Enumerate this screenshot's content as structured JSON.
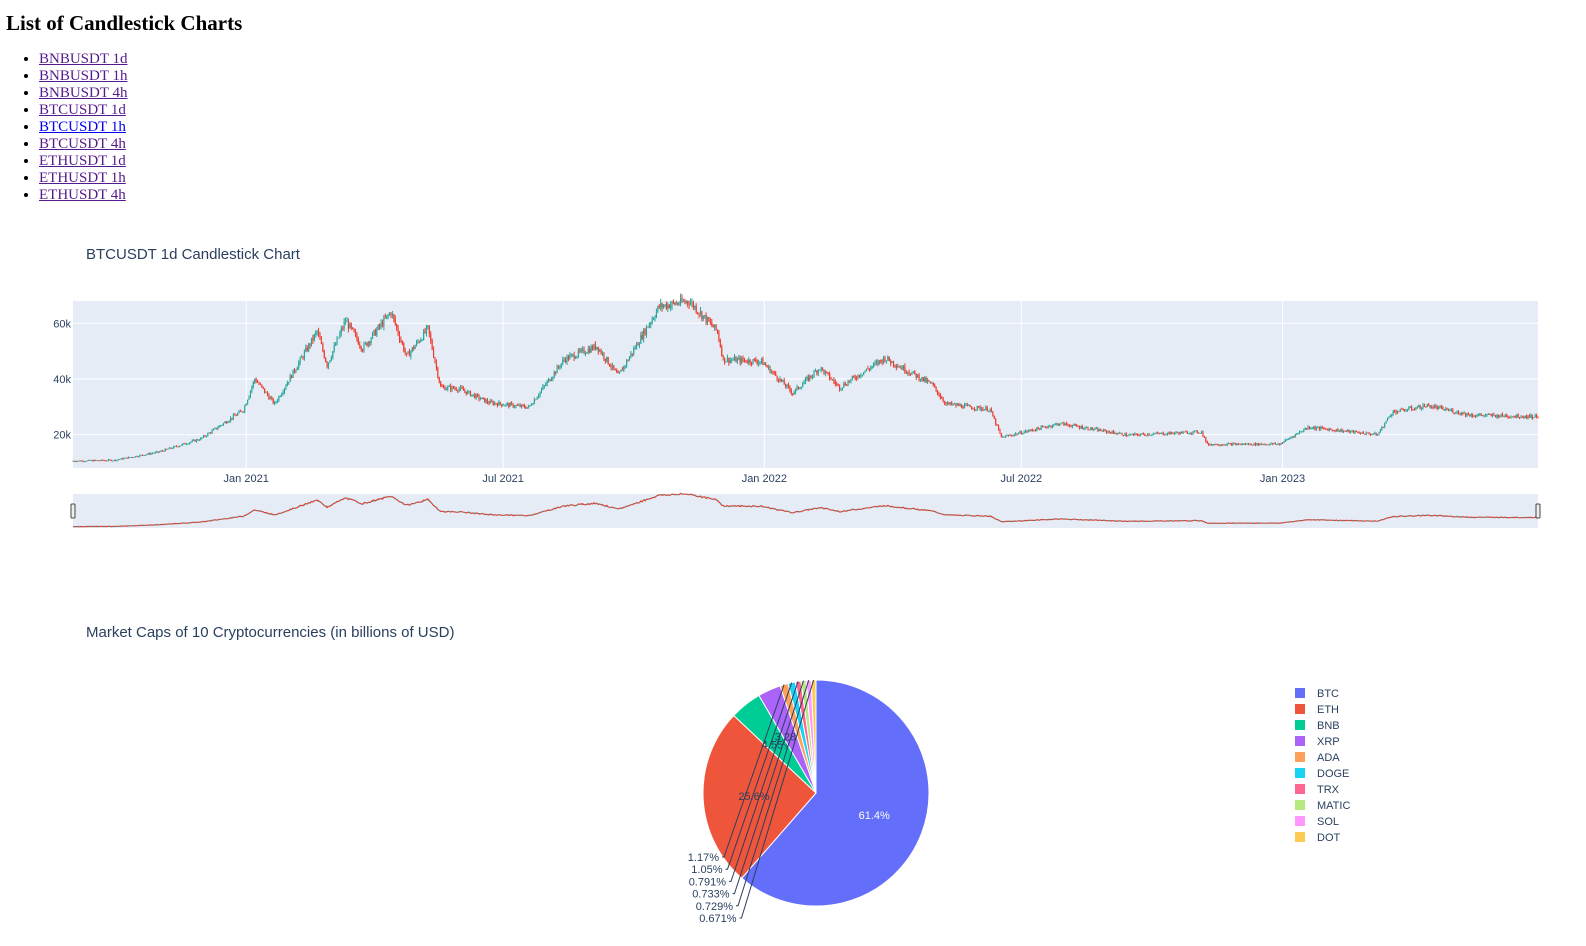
{
  "page": {
    "heading": "List of Candlestick Charts",
    "links": [
      {
        "label": "BNBUSDT 1d",
        "active": false
      },
      {
        "label": "BNBUSDT 1h",
        "active": false
      },
      {
        "label": "BNBUSDT 4h",
        "active": false
      },
      {
        "label": "BTCUSDT 1d",
        "active": false
      },
      {
        "label": "BTCUSDT 1h",
        "active": true
      },
      {
        "label": "BTCUSDT 4h",
        "active": false
      },
      {
        "label": "ETHUSDT 1d",
        "active": false
      },
      {
        "label": "ETHUSDT 1h",
        "active": false
      },
      {
        "label": "ETHUSDT 4h",
        "active": false
      }
    ]
  },
  "colors": {
    "increasing": "#26a69a",
    "decreasing": "#ef3b2c",
    "plot_bg": "#e5ecf6",
    "grid": "#ffffff",
    "text": "#2a3f5f"
  },
  "chart_data": [
    {
      "type": "candlestick",
      "title": "BTCUSDT 1d Candlestick Chart",
      "x_range": [
        "2020-09-01",
        "2023-06-30"
      ],
      "ylim": [
        8000,
        68000
      ],
      "y_ticks": [
        {
          "value": 20000,
          "label": "20k"
        },
        {
          "value": 40000,
          "label": "40k"
        },
        {
          "value": 60000,
          "label": "60k"
        }
      ],
      "x_ticks": [
        {
          "value": "2021-01-01",
          "label": "Jan 2021"
        },
        {
          "value": "2021-07-01",
          "label": "Jul 2021"
        },
        {
          "value": "2022-01-01",
          "label": "Jan 2022"
        },
        {
          "value": "2022-07-01",
          "label": "Jul 2022"
        },
        {
          "value": "2023-01-01",
          "label": "Jan 2023"
        }
      ],
      "rangeslider": true,
      "price_path": [
        [
          "2020-09-01",
          10500
        ],
        [
          "2020-10-01",
          10800
        ],
        [
          "2020-11-01",
          13700
        ],
        [
          "2020-12-01",
          18500
        ],
        [
          "2020-12-31",
          28900
        ],
        [
          "2021-01-08",
          40000
        ],
        [
          "2021-01-22",
          31000
        ],
        [
          "2021-02-21",
          57000
        ],
        [
          "2021-02-28",
          45000
        ],
        [
          "2021-03-13",
          61000
        ],
        [
          "2021-03-25",
          51000
        ],
        [
          "2021-04-14",
          64000
        ],
        [
          "2021-04-25",
          48000
        ],
        [
          "2021-05-10",
          58000
        ],
        [
          "2021-05-19",
          37000
        ],
        [
          "2021-06-01",
          36500
        ],
        [
          "2021-06-22",
          31500
        ],
        [
          "2021-07-20",
          29800
        ],
        [
          "2021-08-14",
          47000
        ],
        [
          "2021-09-06",
          51800
        ],
        [
          "2021-09-21",
          41000
        ],
        [
          "2021-10-20",
          66000
        ],
        [
          "2021-11-10",
          68000
        ],
        [
          "2021-11-30",
          57000
        ],
        [
          "2021-12-04",
          47000
        ],
        [
          "2021-12-31",
          46300
        ],
        [
          "2022-01-22",
          35000
        ],
        [
          "2022-02-10",
          44000
        ],
        [
          "2022-02-24",
          37000
        ],
        [
          "2022-03-28",
          47500
        ],
        [
          "2022-04-30",
          38000
        ],
        [
          "2022-05-10",
          31000
        ],
        [
          "2022-06-10",
          29000
        ],
        [
          "2022-06-18",
          19000
        ],
        [
          "2022-07-29",
          24000
        ],
        [
          "2022-09-15",
          19800
        ],
        [
          "2022-11-06",
          21000
        ],
        [
          "2022-11-10",
          16500
        ],
        [
          "2022-12-31",
          16600
        ],
        [
          "2023-01-20",
          22700
        ],
        [
          "2023-03-10",
          20000
        ],
        [
          "2023-03-20",
          28000
        ],
        [
          "2023-04-14",
          30400
        ],
        [
          "2023-05-15",
          27000
        ],
        [
          "2023-06-30",
          26500
        ]
      ]
    },
    {
      "type": "pie",
      "title": "Market Caps of 10 Cryptocurrencies (in billions of USD)",
      "labels": [
        "BTC",
        "ETH",
        "BNB",
        "XRP",
        "ADA",
        "DOGE",
        "TRX",
        "MATIC",
        "SOL",
        "DOT"
      ],
      "percents": [
        61.4,
        25.6,
        4.55,
        3.28,
        1.17,
        1.05,
        0.791,
        0.733,
        0.729,
        0.671
      ],
      "slice_labels": [
        "61.4%",
        "25.6%",
        "4.55%",
        "3.28%",
        "1.17%",
        "1.05%",
        "0.791%",
        "0.733%",
        "0.729%",
        "0.671%"
      ],
      "colors": [
        "#636efa",
        "#ef553b",
        "#00cc96",
        "#ab63fa",
        "#ffa15a",
        "#19d3f3",
        "#ff6692",
        "#b6e880",
        "#ff97ff",
        "#fecb52"
      ],
      "legend_position": "right"
    }
  ]
}
